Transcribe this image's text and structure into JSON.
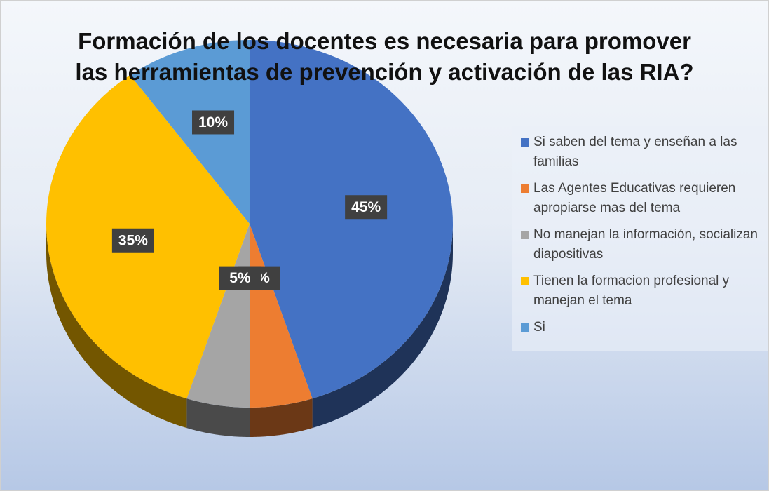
{
  "chart_data": {
    "type": "pie",
    "title": [
      "Formación de los docentes es  necesaria para promover",
      "las herramientas de prevención y activación de las RIA?"
    ],
    "categories": [
      "Si saben del tema y enseñan a las familias",
      "Las Agentes Educativas requieren apropiarse mas del tema",
      "No manejan la información, socializan diapositivas",
      "Tienen la formacion profesional y manejan el tema",
      "Si"
    ],
    "values": [
      45,
      5,
      5,
      35,
      10
    ],
    "value_labels": [
      "45%",
      "5%",
      "5%",
      "35%",
      "10%"
    ],
    "colors": [
      "#4472c4",
      "#ed7d31",
      "#a5a5a5",
      "#ffc000",
      "#5b9bd5"
    ],
    "legend": "right"
  }
}
